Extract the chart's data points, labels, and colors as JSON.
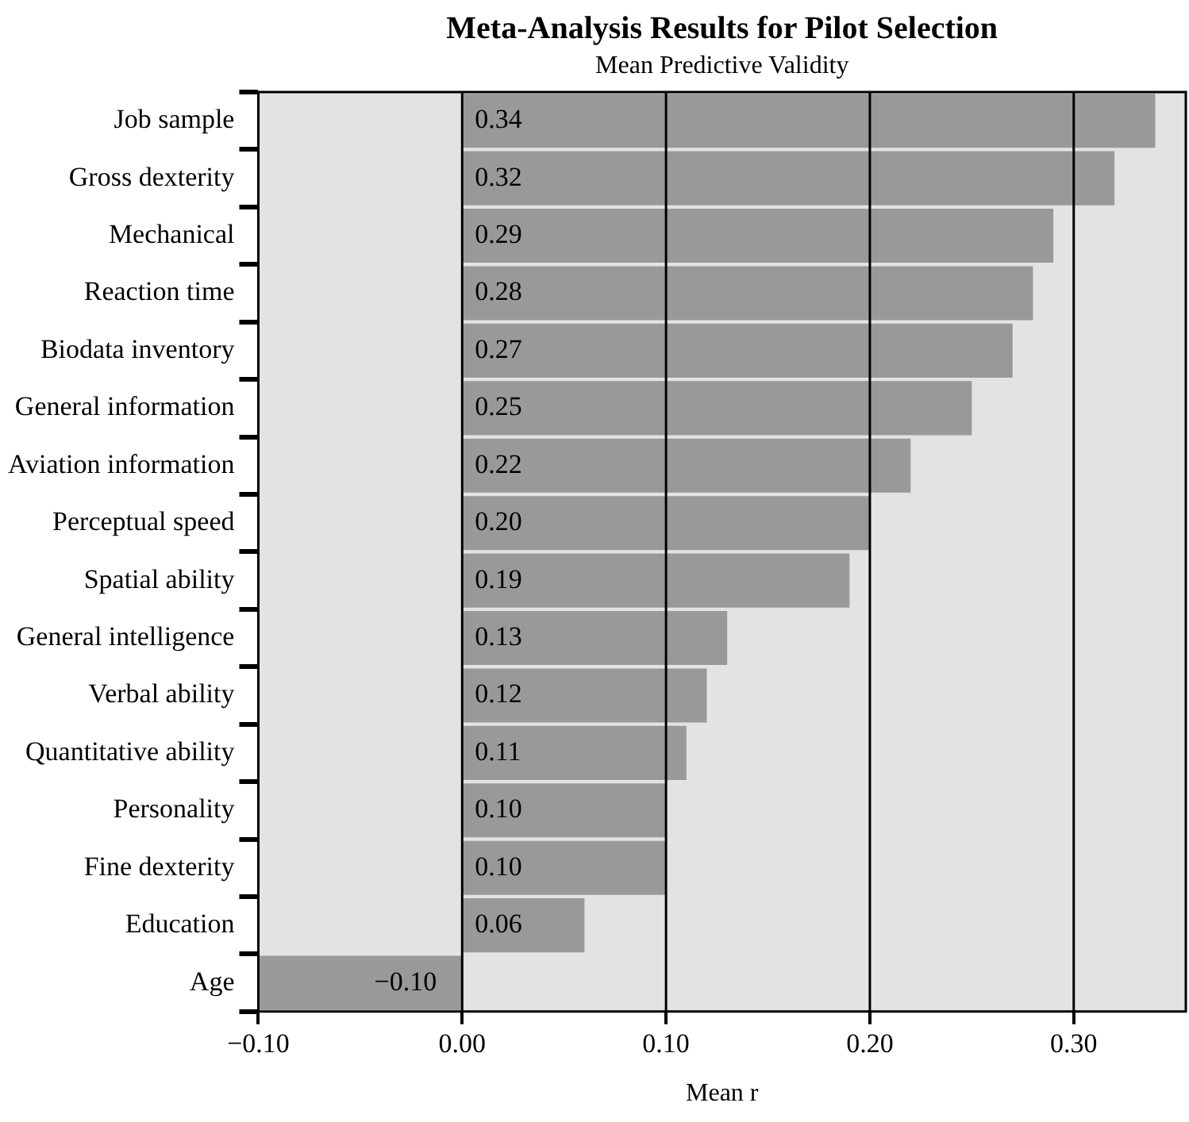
{
  "chart_data": {
    "type": "bar",
    "orientation": "horizontal",
    "title": "Meta-Analysis Results for Pilot Selection",
    "subtitle": "Mean Predictive Validity",
    "xlabel": "Mean r",
    "categories": [
      "Job sample",
      "Gross dexterity",
      "Mechanical",
      "Reaction time",
      "Biodata inventory",
      "General information",
      "Aviation information",
      "Perceptual speed",
      "Spatial ability",
      "General intelligence",
      "Verbal ability",
      "Quantitative ability",
      "Personality",
      "Fine dexterity",
      "Education",
      "Age"
    ],
    "values": [
      0.34,
      0.32,
      0.29,
      0.28,
      0.27,
      0.25,
      0.22,
      0.2,
      0.19,
      0.13,
      0.12,
      0.11,
      0.1,
      0.1,
      0.06,
      -0.1
    ],
    "value_labels": [
      "0.34",
      "0.32",
      "0.29",
      "0.28",
      "0.27",
      "0.25",
      "0.22",
      "0.20",
      "0.19",
      "0.13",
      "0.12",
      "0.11",
      "0.10",
      "0.10",
      "0.06",
      "−0.10"
    ],
    "color": "#999999",
    "xlim": [
      -0.1,
      0.355
    ],
    "xticks": [
      {
        "value": -0.1,
        "label": "−0.10"
      },
      {
        "value": 0,
        "label": "0.00"
      },
      {
        "value": 0.1,
        "label": "0.10"
      },
      {
        "value": 0.2,
        "label": "0.20"
      },
      {
        "value": 0.3,
        "label": "0.30"
      }
    ],
    "grid": "x",
    "legend": false
  }
}
